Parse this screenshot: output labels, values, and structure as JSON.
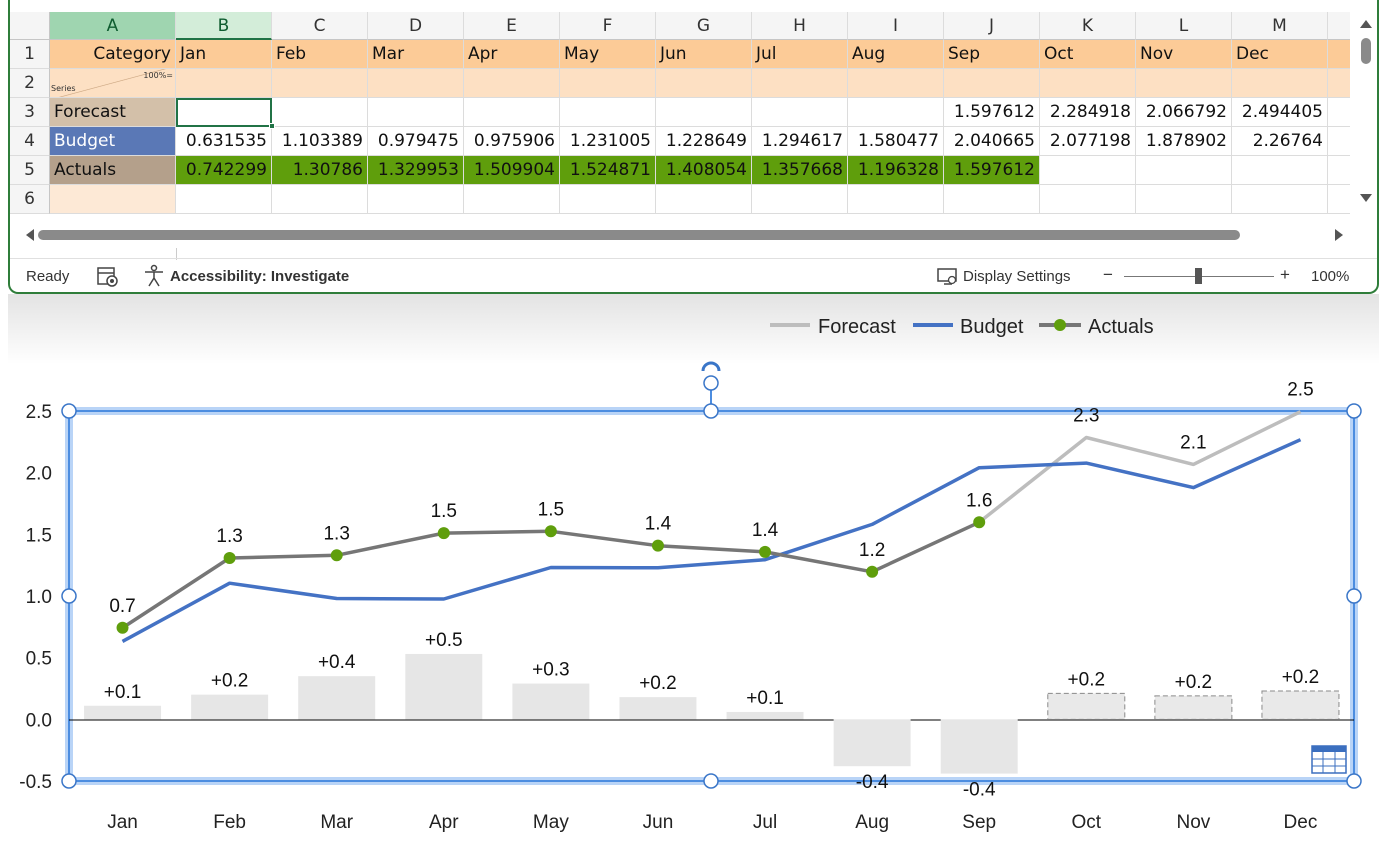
{
  "spreadsheet": {
    "column_headers": [
      "A",
      "B",
      "C",
      "D",
      "E",
      "F",
      "G",
      "H",
      "I",
      "J",
      "K",
      "L",
      "M"
    ],
    "row_headers": [
      "1",
      "2",
      "3",
      "4",
      "5",
      "6"
    ],
    "row1": {
      "a": "Category",
      "months": [
        "Jan",
        "Feb",
        "Mar",
        "Apr",
        "May",
        "Jun",
        "Jul",
        "Aug",
        "Sep",
        "Oct",
        "Nov",
        "Dec"
      ]
    },
    "row2": {
      "note": "100%=",
      "series_label": "Series"
    },
    "forecast": {
      "label": "Forecast",
      "values": [
        "",
        "",
        "",
        "",
        "",
        "",
        "",
        "",
        "1.597612",
        "2.284918",
        "2.066792",
        "2.494405"
      ]
    },
    "budget": {
      "label": "Budget",
      "values": [
        "0.631535",
        "1.103389",
        "0.979475",
        "0.975906",
        "1.231005",
        "1.228649",
        "1.294617",
        "1.580477",
        "2.040665",
        "2.077198",
        "1.878902",
        "2.26764"
      ]
    },
    "actuals": {
      "label": "Actuals",
      "values": [
        "0.742299",
        "1.30786",
        "1.329953",
        "1.509904",
        "1.524871",
        "1.408054",
        "1.357668",
        "1.196328",
        "1.597612",
        "",
        "",
        ""
      ]
    },
    "colors": {
      "header_orange": "#fccb97",
      "row2_orange": "#fde0c3",
      "forecast_fill": "#d3c0a9",
      "budget_fill": "#5a78b6",
      "actuals_fill": "#b4a08b",
      "actuals_value_fill": "#5f9e0c"
    }
  },
  "statusbar": {
    "ready": "Ready",
    "accessibility": "Accessibility: Investigate",
    "display_settings": "Display Settings",
    "zoom_minus": "−",
    "zoom_plus": "+",
    "zoom": "100%"
  },
  "chart_data": {
    "type": "line",
    "categories": [
      "Jan",
      "Feb",
      "Mar",
      "Apr",
      "May",
      "Jun",
      "Jul",
      "Aug",
      "Sep",
      "Oct",
      "Nov",
      "Dec"
    ],
    "ylim": [
      -0.5,
      2.5
    ],
    "yticks": [
      "2.5",
      "2.0",
      "1.5",
      "1.0",
      "0.5",
      "0.0",
      "-0.5"
    ],
    "legend_position": "top",
    "series": [
      {
        "name": "Forecast",
        "color": "#bdbdbd",
        "values": [
          null,
          null,
          null,
          null,
          null,
          null,
          null,
          null,
          1.597612,
          2.284918,
          2.066792,
          2.494405
        ]
      },
      {
        "name": "Budget",
        "color": "#4472c4",
        "values": [
          0.631535,
          1.103389,
          0.979475,
          0.975906,
          1.231005,
          1.228649,
          1.294617,
          1.580477,
          2.040665,
          2.077198,
          1.878902,
          2.26764
        ]
      },
      {
        "name": "Actuals",
        "color": "#767676",
        "marker_color": "#5f9e0c",
        "values": [
          0.742299,
          1.30786,
          1.329953,
          1.509904,
          1.524871,
          1.408054,
          1.357668,
          1.196328,
          1.597612,
          null,
          null,
          null
        ]
      }
    ],
    "line_labels": [
      "0.7",
      "1.3",
      "1.3",
      "1.5",
      "1.5",
      "1.4",
      "1.4",
      "1.2",
      "1.6",
      "2.3",
      "2.1",
      "2.5"
    ],
    "variance": {
      "values": [
        0.11,
        0.2,
        0.35,
        0.53,
        0.29,
        0.18,
        0.06,
        -0.38,
        -0.44,
        0.21,
        0.19,
        0.23
      ],
      "labels": [
        "+0.1",
        "+0.2",
        "+0.4",
        "+0.5",
        "+0.3",
        "+0.2",
        "+0.1",
        "-0.4",
        "-0.4",
        "+0.2",
        "+0.2",
        "+0.2"
      ],
      "dashed_from_index": 9,
      "color": "#e6e6e6"
    }
  }
}
